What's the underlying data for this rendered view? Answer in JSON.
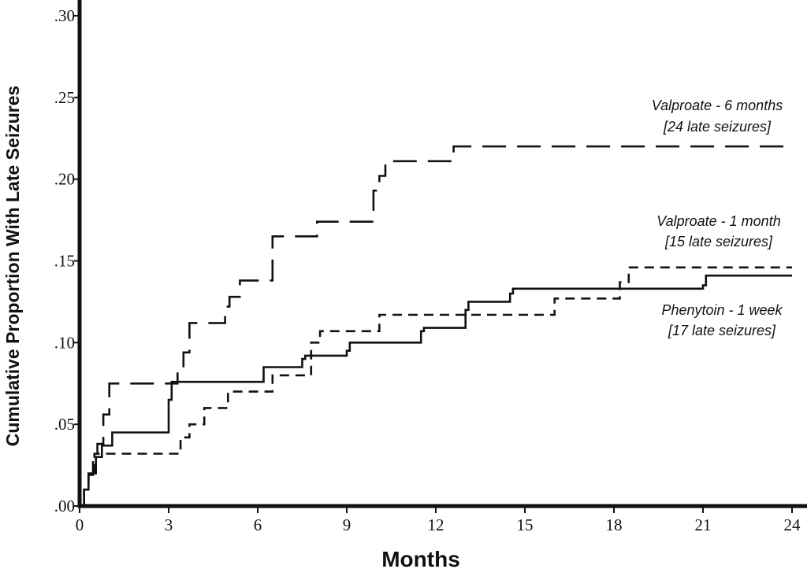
{
  "chart_data": {
    "type": "line",
    "xlabel": "Months",
    "ylabel": "Cumulative Proportion With Late Seizures",
    "xlim": [
      0,
      24
    ],
    "ylim": [
      0,
      0.3
    ],
    "xticks": [
      0,
      3,
      6,
      9,
      12,
      15,
      18,
      21,
      24
    ],
    "xtick_labels": [
      "0",
      "3",
      "6",
      "9",
      "12",
      "15",
      "18",
      "21",
      "24"
    ],
    "yticks": [
      0,
      0.05,
      0.1,
      0.15,
      0.2,
      0.25,
      0.3
    ],
    "ytick_labels": [
      ".00",
      ".05",
      ".10",
      ".15",
      ".20",
      ".25",
      ".30"
    ],
    "grid": false,
    "series": [
      {
        "name": "Valproate - 6 months",
        "note": "[24 late seizures]",
        "style": "long-dash",
        "x": [
          0,
          0.15,
          0.3,
          0.45,
          0.6,
          0.8,
          1.0,
          3.0,
          3.15,
          3.3,
          3.5,
          3.7,
          4.9,
          5.05,
          5.4,
          6.3,
          6.5,
          7.8,
          8.0,
          9.9,
          10.1,
          10.3,
          12.6,
          24.0
        ],
        "y": [
          0,
          0.01,
          0.019,
          0.028,
          0.038,
          0.056,
          0.075,
          0.075,
          0.075,
          0.084,
          0.094,
          0.112,
          0.122,
          0.128,
          0.138,
          0.138,
          0.165,
          0.165,
          0.174,
          0.193,
          0.202,
          0.211,
          0.22,
          0.22
        ]
      },
      {
        "name": "Valproate - 1 month",
        "note": "[15 late seizures]",
        "style": "short-dash",
        "x": [
          0,
          0.15,
          0.3,
          0.5,
          3.0,
          3.4,
          3.7,
          4.2,
          5.0,
          6.3,
          6.5,
          7.5,
          7.8,
          8.1,
          10.0,
          10.1,
          15.8,
          16.0,
          18.2,
          18.5,
          24.0
        ],
        "y": [
          0,
          0.01,
          0.02,
          0.032,
          0.032,
          0.042,
          0.05,
          0.06,
          0.07,
          0.07,
          0.08,
          0.08,
          0.1,
          0.107,
          0.107,
          0.117,
          0.117,
          0.127,
          0.137,
          0.146,
          0.146
        ]
      },
      {
        "name": "Phenytoin - 1 week",
        "note": "[17 late seizures]",
        "style": "solid",
        "x": [
          0,
          0.15,
          0.3,
          0.55,
          0.75,
          1.1,
          2.7,
          3.0,
          3.1,
          6.2,
          7.5,
          7.6,
          9.0,
          9.1,
          11.5,
          11.6,
          13.0,
          13.1,
          14.5,
          14.6,
          21.0,
          21.1,
          24.0
        ],
        "y": [
          0,
          0.01,
          0.02,
          0.03,
          0.037,
          0.045,
          0.045,
          0.065,
          0.076,
          0.085,
          0.09,
          0.092,
          0.095,
          0.1,
          0.107,
          0.109,
          0.12,
          0.125,
          0.13,
          0.133,
          0.135,
          0.141,
          0.141
        ]
      }
    ]
  }
}
